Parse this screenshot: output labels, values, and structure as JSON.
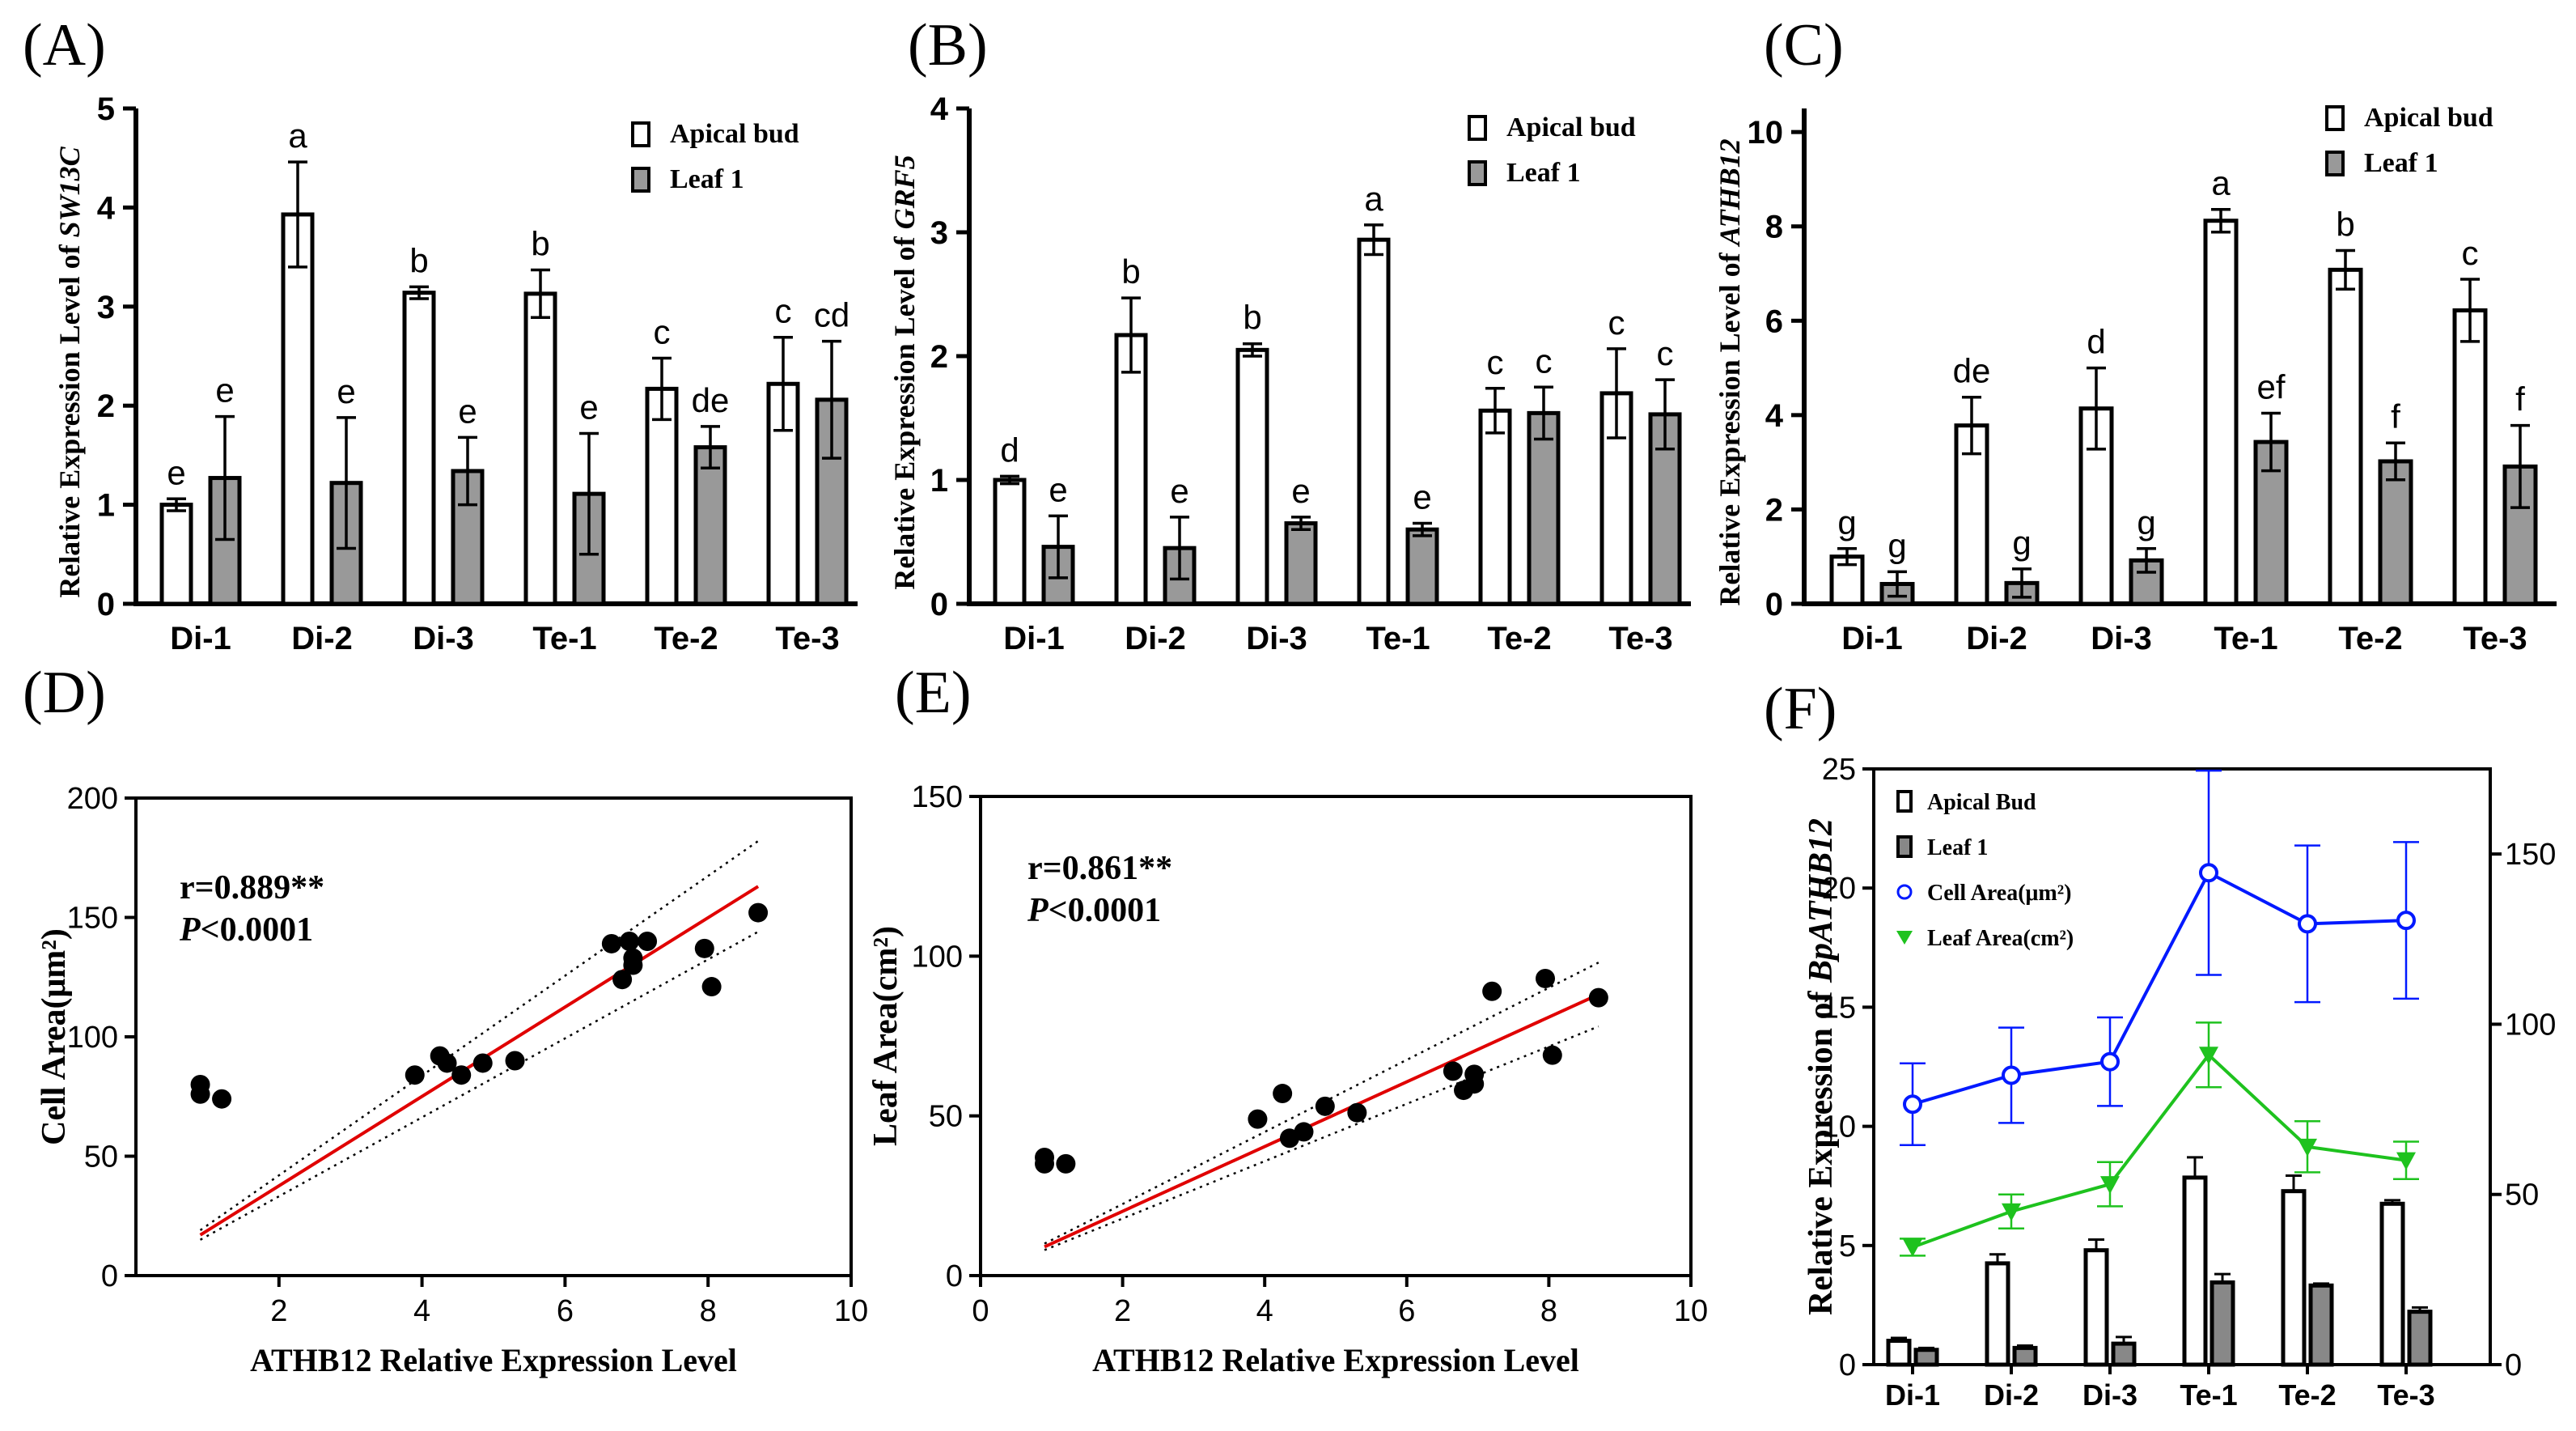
{
  "panel_labels": [
    "(A)",
    "(B)",
    "(C)",
    "(D)",
    "(E)",
    "(F)"
  ],
  "chart_data": [
    {
      "id": "A",
      "type": "bar",
      "ylabel_prefix": "Relative Expression Level of ",
      "ylabel_gene": "SW13C",
      "ylim": [
        0,
        5
      ],
      "yticks": [
        0,
        1,
        2,
        3,
        4,
        5
      ],
      "categories": [
        "Di-1",
        "Di-2",
        "Di-3",
        "Te-1",
        "Te-2",
        "Te-3"
      ],
      "series": [
        {
          "name": "Apical bud",
          "color": "#ffffff",
          "values": [
            1.0,
            3.93,
            3.14,
            3.13,
            2.17,
            2.22
          ],
          "errors": [
            0.06,
            0.53,
            0.06,
            0.24,
            0.31,
            0.47
          ],
          "letters": [
            "e",
            "a",
            "b",
            "b",
            "c",
            "c"
          ]
        },
        {
          "name": "Leaf 1",
          "color": "#999999",
          "values": [
            1.27,
            1.22,
            1.34,
            1.11,
            1.58,
            2.06
          ],
          "errors": [
            0.62,
            0.66,
            0.34,
            0.61,
            0.21,
            0.59
          ],
          "letters": [
            "e",
            "e",
            "e",
            "e",
            "de",
            "cd"
          ]
        }
      ]
    },
    {
      "id": "B",
      "type": "bar",
      "ylabel_prefix": "Relative Expression Level of ",
      "ylabel_gene": "GRF5",
      "ylim": [
        0,
        4
      ],
      "yticks": [
        0,
        1,
        2,
        3,
        4
      ],
      "categories": [
        "Di-1",
        "Di-2",
        "Di-3",
        "Te-1",
        "Te-2",
        "Te-3"
      ],
      "series": [
        {
          "name": "Apical bud",
          "color": "#ffffff",
          "values": [
            1.0,
            2.17,
            2.05,
            2.94,
            1.56,
            1.7
          ],
          "errors": [
            0.03,
            0.3,
            0.05,
            0.12,
            0.18,
            0.36
          ],
          "letters": [
            "d",
            "b",
            "b",
            "a",
            "c",
            "c"
          ]
        },
        {
          "name": "Leaf 1",
          "color": "#999999",
          "values": [
            0.46,
            0.45,
            0.65,
            0.6,
            1.54,
            1.53
          ],
          "errors": [
            0.25,
            0.25,
            0.05,
            0.05,
            0.21,
            0.28
          ],
          "letters": [
            "e",
            "e",
            "e",
            "e",
            "c",
            "c"
          ]
        }
      ]
    },
    {
      "id": "C",
      "type": "bar",
      "ylabel_prefix": "Relative Expression Level of ",
      "ylabel_gene": "ATHB12",
      "ylim": [
        0,
        10.5
      ],
      "yticks": [
        0,
        2,
        4,
        6,
        8,
        10
      ],
      "categories": [
        "Di-1",
        "Di-2",
        "Di-3",
        "Te-1",
        "Te-2",
        "Te-3"
      ],
      "series": [
        {
          "name": "Apical bud",
          "color": "#ffffff",
          "values": [
            1.0,
            3.78,
            4.14,
            8.12,
            7.08,
            6.22
          ],
          "errors": [
            0.17,
            0.6,
            0.86,
            0.24,
            0.41,
            0.66
          ],
          "letters": [
            "g",
            "de",
            "d",
            "a",
            "b",
            "c"
          ]
        },
        {
          "name": "Leaf 1",
          "color": "#999999",
          "values": [
            0.42,
            0.44,
            0.92,
            3.43,
            3.02,
            2.91
          ],
          "errors": [
            0.26,
            0.3,
            0.25,
            0.61,
            0.39,
            0.87
          ],
          "letters": [
            "g",
            "g",
            "g",
            "ef",
            "f",
            "f"
          ]
        }
      ]
    },
    {
      "id": "D",
      "type": "scatter",
      "xlabel": "ATHB12 Relative Expression Level",
      "ylabel": "Cell Area(μm²)",
      "xlim": [
        0,
        10
      ],
      "ylim": [
        0,
        200
      ],
      "xticks": [
        2,
        4,
        6,
        8,
        10
      ],
      "yticks": [
        0,
        50,
        100,
        150,
        200
      ],
      "r_text": "r=0.889**",
      "p_prefix": "P",
      "p_suffix": "<0.0001",
      "fit": {
        "x": [
          0.9,
          8.7
        ],
        "y": [
          17,
          163
        ]
      },
      "ci_upper": {
        "x": [
          0.9,
          8.7
        ],
        "y": [
          19,
          182
        ]
      },
      "ci_lower": {
        "x": [
          0.9,
          8.7
        ],
        "y": [
          15,
          144
        ]
      },
      "points": [
        {
          "x": 0.9,
          "y": 80
        },
        {
          "x": 0.9,
          "y": 76
        },
        {
          "x": 1.2,
          "y": 74
        },
        {
          "x": 3.9,
          "y": 84
        },
        {
          "x": 4.25,
          "y": 92
        },
        {
          "x": 4.35,
          "y": 89
        },
        {
          "x": 4.55,
          "y": 84
        },
        {
          "x": 4.85,
          "y": 89
        },
        {
          "x": 5.3,
          "y": 90
        },
        {
          "x": 6.65,
          "y": 139
        },
        {
          "x": 6.8,
          "y": 124
        },
        {
          "x": 6.9,
          "y": 140
        },
        {
          "x": 6.95,
          "y": 133
        },
        {
          "x": 6.95,
          "y": 130
        },
        {
          "x": 7.15,
          "y": 140
        },
        {
          "x": 7.95,
          "y": 137
        },
        {
          "x": 8.05,
          "y": 121
        },
        {
          "x": 8.7,
          "y": 152
        }
      ]
    },
    {
      "id": "E",
      "type": "scatter",
      "xlabel": "ATHB12 Relative Expression Level",
      "ylabel": "Leaf Area(cm²)",
      "xlim": [
        0,
        10
      ],
      "ylim": [
        0,
        150
      ],
      "xticks": [
        0,
        2,
        4,
        6,
        8,
        10
      ],
      "yticks": [
        0,
        50,
        100,
        150
      ],
      "r_text": "r=0.861**",
      "p_prefix": "P",
      "p_suffix": "<0.0001",
      "fit": {
        "x": [
          0.9,
          8.7
        ],
        "y": [
          9,
          88
        ]
      },
      "ci_upper": {
        "x": [
          0.9,
          8.7
        ],
        "y": [
          10,
          98
        ]
      },
      "ci_lower": {
        "x": [
          0.9,
          8.7
        ],
        "y": [
          8,
          78
        ]
      },
      "points": [
        {
          "x": 0.9,
          "y": 37
        },
        {
          "x": 0.9,
          "y": 35
        },
        {
          "x": 1.2,
          "y": 35
        },
        {
          "x": 3.9,
          "y": 49
        },
        {
          "x": 4.25,
          "y": 57
        },
        {
          "x": 4.35,
          "y": 43
        },
        {
          "x": 4.55,
          "y": 45
        },
        {
          "x": 4.85,
          "y": 53
        },
        {
          "x": 5.3,
          "y": 51
        },
        {
          "x": 6.65,
          "y": 64
        },
        {
          "x": 6.8,
          "y": 58
        },
        {
          "x": 6.95,
          "y": 63
        },
        {
          "x": 6.95,
          "y": 60
        },
        {
          "x": 7.2,
          "y": 89
        },
        {
          "x": 7.95,
          "y": 93
        },
        {
          "x": 8.05,
          "y": 69
        },
        {
          "x": 8.7,
          "y": 87
        }
      ]
    },
    {
      "id": "F",
      "type": "bar+line",
      "ylabel_prefix": "Relative Expression of ",
      "ylabel_gene": "BpATHB12",
      "ylim_left": [
        0,
        25
      ],
      "yticks_left": [
        0,
        5,
        10,
        15,
        20,
        25
      ],
      "ylim_right": [
        0,
        175
      ],
      "yticks_right": [
        0,
        50,
        100,
        150
      ],
      "categories": [
        "Di-1",
        "Di-2",
        "Di-3",
        "Te-1",
        "Te-2",
        "Te-3"
      ],
      "bar_series": [
        {
          "name": "Apical Bud",
          "color": "#ffffff",
          "values": [
            1.0,
            4.25,
            4.8,
            7.85,
            7.28,
            6.75
          ],
          "errors": [
            0.12,
            0.38,
            0.45,
            0.85,
            0.65,
            0.15
          ]
        },
        {
          "name": "Leaf 1",
          "color": "#888888",
          "values": [
            0.62,
            0.7,
            0.88,
            3.45,
            3.32,
            2.22
          ],
          "errors": [
            0.08,
            0.1,
            0.28,
            0.35,
            0.08,
            0.18
          ]
        }
      ],
      "line_series": [
        {
          "name": "Cell Area(μm²)",
          "color": "#0019ff",
          "marker": "circle",
          "values": [
            76.5,
            85,
            89,
            144.5,
            129.5,
            130.5
          ],
          "errors": [
            12,
            14,
            13,
            30,
            23,
            23
          ]
        },
        {
          "name": "Leaf Area(cm²)",
          "color": "#1ec21e",
          "marker": "triangle",
          "values": [
            34.5,
            45,
            53,
            91,
            64,
            60
          ],
          "errors": [
            2.5,
            5,
            6.5,
            9.5,
            7.5,
            5.5
          ]
        }
      ]
    }
  ]
}
